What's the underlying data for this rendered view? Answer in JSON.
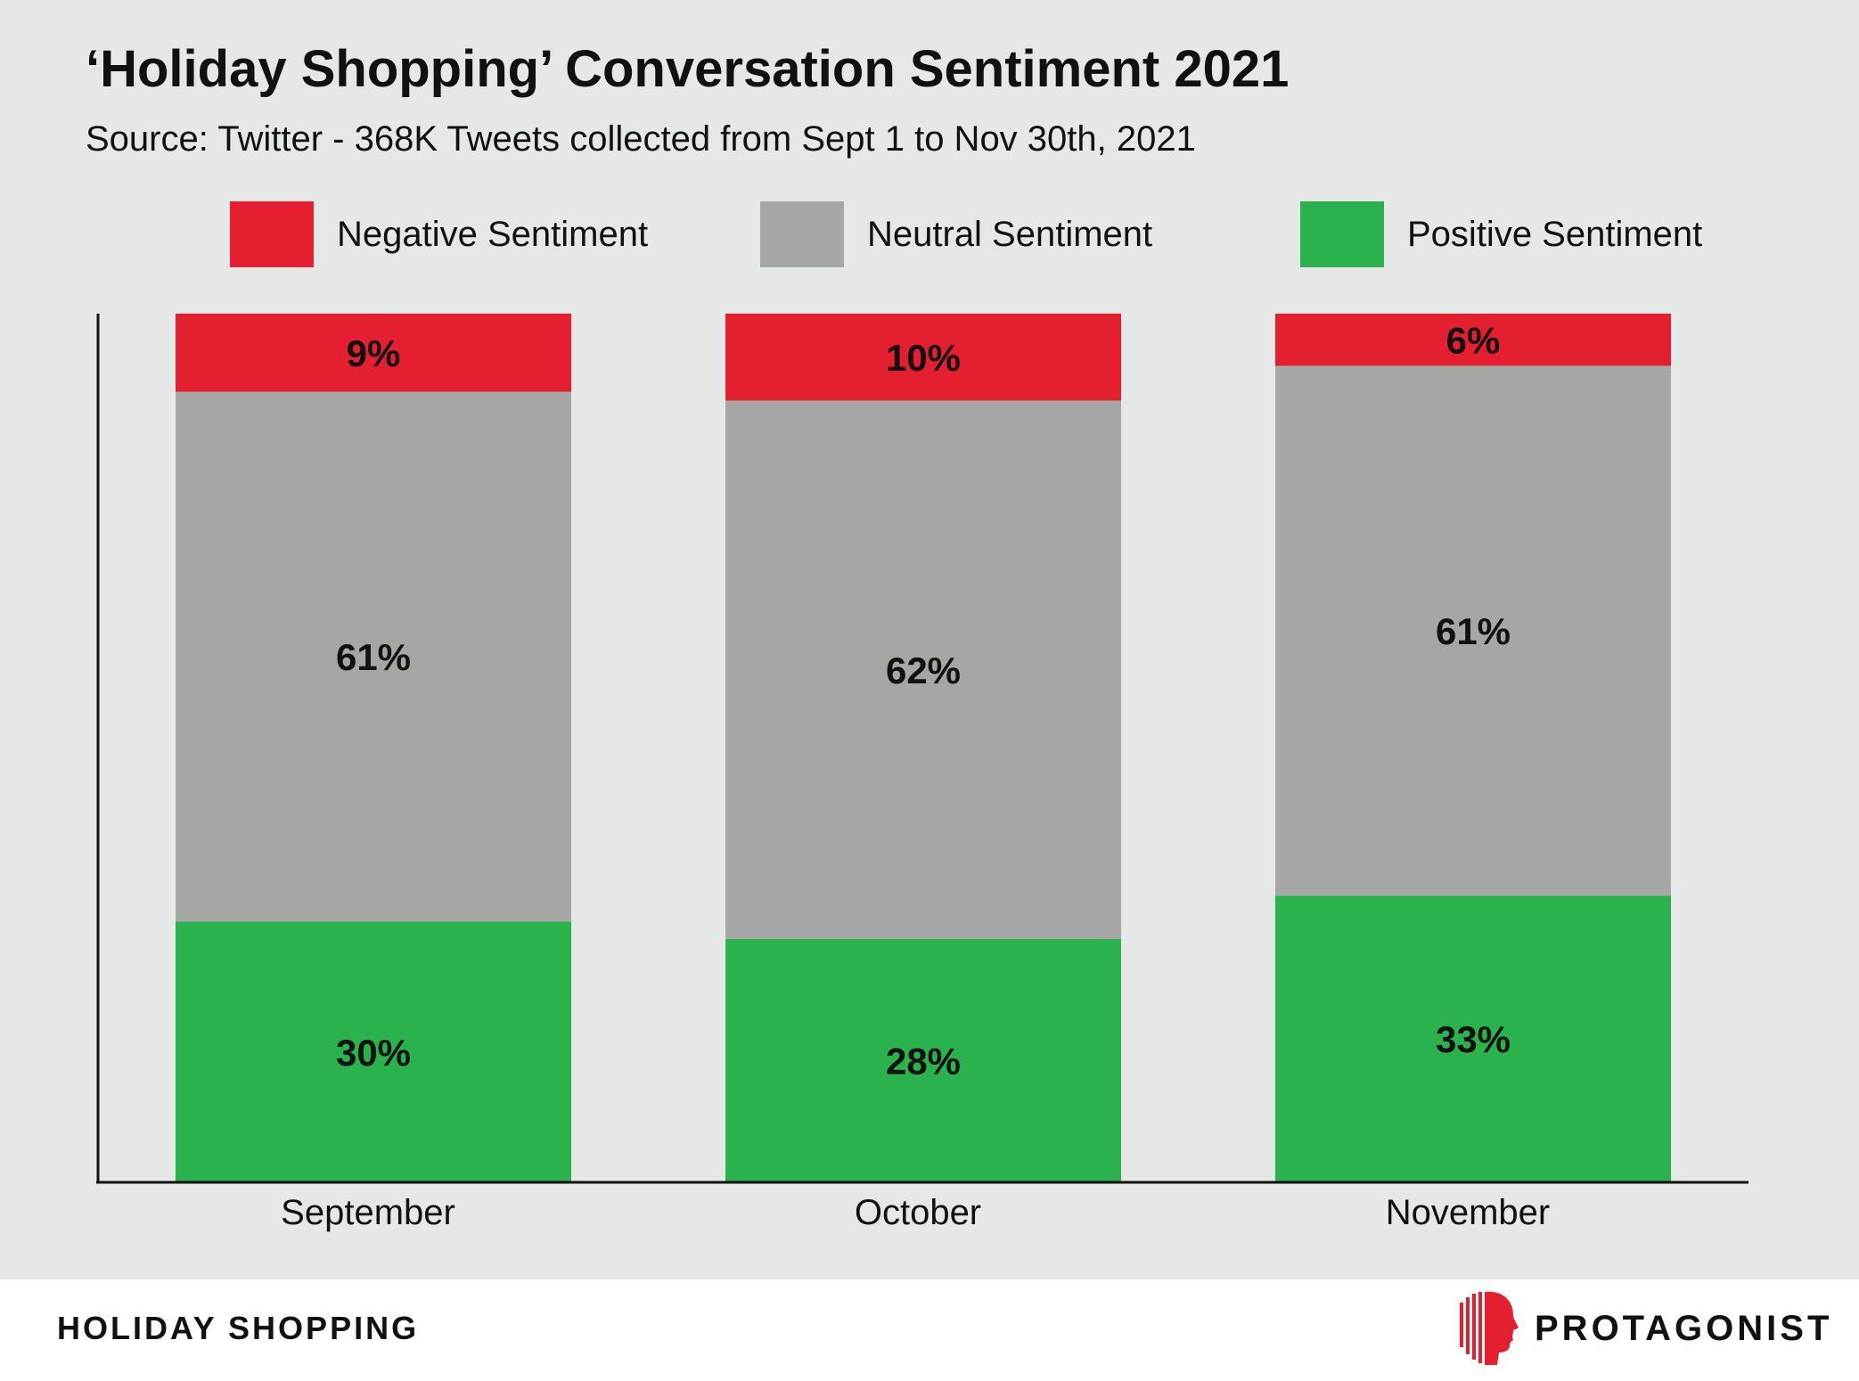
{
  "colors": {
    "negative": "#e31f30",
    "neutral": "#a6a6a5",
    "positive": "#2ab34d",
    "background": "#e6e7e7",
    "logo": "#e31f30"
  },
  "legend": [
    {
      "label": "Negative Sentiment",
      "color_key": "negative"
    },
    {
      "label": "Neutral Sentiment",
      "color_key": "neutral"
    },
    {
      "label": "Positive Sentiment",
      "color_key": "positive"
    }
  ],
  "chart_data": {
    "type": "bar",
    "stacked": true,
    "title": "‘Holiday Shopping’ Conversation Sentiment 2021",
    "subtitle": "Source: Twitter - 368K Tweets collected from Sept 1 to Nov 30th, 2021",
    "categories": [
      "September",
      "October",
      "November"
    ],
    "series": [
      {
        "name": "Positive Sentiment",
        "color_key": "positive",
        "values": [
          30,
          28,
          33
        ],
        "labels": [
          "30%",
          "28%",
          "33%"
        ]
      },
      {
        "name": "Neutral Sentiment",
        "color_key": "neutral",
        "values": [
          61,
          62,
          61
        ],
        "labels": [
          "61%",
          "62%",
          "61%"
        ]
      },
      {
        "name": "Negative Sentiment",
        "color_key": "negative",
        "values": [
          9,
          10,
          6
        ],
        "labels": [
          "9%",
          "10%",
          "6%"
        ]
      }
    ],
    "ylim": [
      0,
      100
    ],
    "grid": false,
    "legend_position": "top"
  },
  "footer": {
    "left_text": "HOLIDAY SHOPPING",
    "brand_name": "PROTAGONIST",
    "brand_icon": "head-profile-icon"
  }
}
